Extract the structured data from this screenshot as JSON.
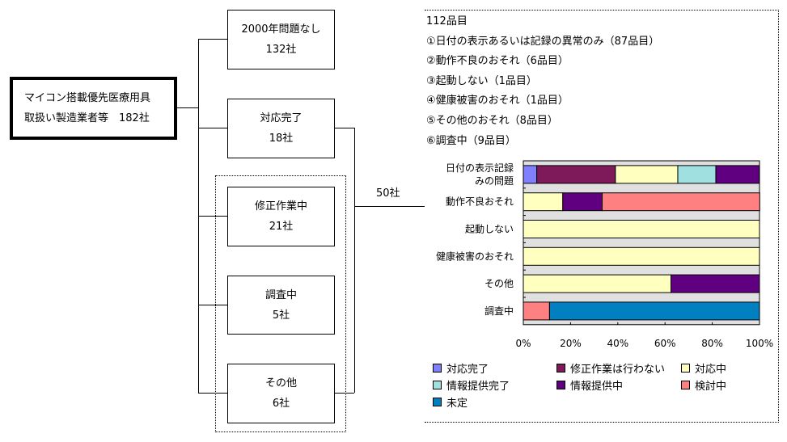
{
  "root": {
    "line1": "マイコン搭載優先医療用具",
    "line2": "取扱い製造業者等　182社"
  },
  "branches": [
    {
      "label": "2000年問題なし",
      "count": "132社"
    },
    {
      "label": "対応完了",
      "count": "18社"
    },
    {
      "label": "修正作業中",
      "count": "21社"
    },
    {
      "label": "調査中",
      "count": "5社"
    },
    {
      "label": "その他",
      "count": "6社"
    }
  ],
  "merge_label": "50社",
  "summary": {
    "total": "112品目",
    "items": [
      "①日付の表示あるいは記録の異常のみ（87品目）",
      "②動作不良のおそれ（6品目）",
      "③起動しない（1品目）",
      "④健康被害のおそれ（1品目）",
      "⑤その他のおそれ（8品目）",
      "⑥調査中（9品目）"
    ]
  },
  "chart_data": {
    "type": "bar",
    "orientation": "horizontal",
    "stacked": "percent",
    "categories": [
      "日付の表示記録みの問題",
      "動作不良おそれ",
      "起動しない",
      "健康被害のおそれ",
      "その他",
      "調査中"
    ],
    "category_lines": [
      [
        "日付の表示記録",
        "みの問題"
      ],
      [
        "動作不良おそれ"
      ],
      [
        "起動しない"
      ],
      [
        "健康被害のおそれ"
      ],
      [
        "その他"
      ],
      [
        "調査中"
      ]
    ],
    "xlim": [
      0,
      100
    ],
    "xticks": [
      "0%",
      "20%",
      "40%",
      "60%",
      "80%",
      "100%"
    ],
    "legend_position": "bottom",
    "series": [
      {
        "name": "対応完了",
        "color": "#8080ff",
        "values": [
          5.7,
          0,
          0,
          0,
          0,
          0
        ]
      },
      {
        "name": "修正作業は行わない",
        "color": "#7f1a5a",
        "values": [
          33.3,
          0,
          0,
          0,
          0,
          0
        ]
      },
      {
        "name": "対応中",
        "color": "#ffffc0",
        "values": [
          26.4,
          16.7,
          100,
          100,
          62.5,
          0
        ]
      },
      {
        "name": "情報提供完了",
        "color": "#a0e0e0",
        "values": [
          16.1,
          0,
          0,
          0,
          0,
          0
        ]
      },
      {
        "name": "情報提供中",
        "color": "#600080",
        "values": [
          18.4,
          16.7,
          0,
          0,
          37.5,
          0
        ]
      },
      {
        "name": "検討中",
        "color": "#ff8080",
        "values": [
          0,
          66.7,
          0,
          0,
          0,
          11.1
        ]
      },
      {
        "name": "未定",
        "color": "#0080c0",
        "values": [
          0,
          0,
          0,
          0,
          0,
          88.9
        ]
      }
    ],
    "plot_background": "#e0e0e0"
  }
}
